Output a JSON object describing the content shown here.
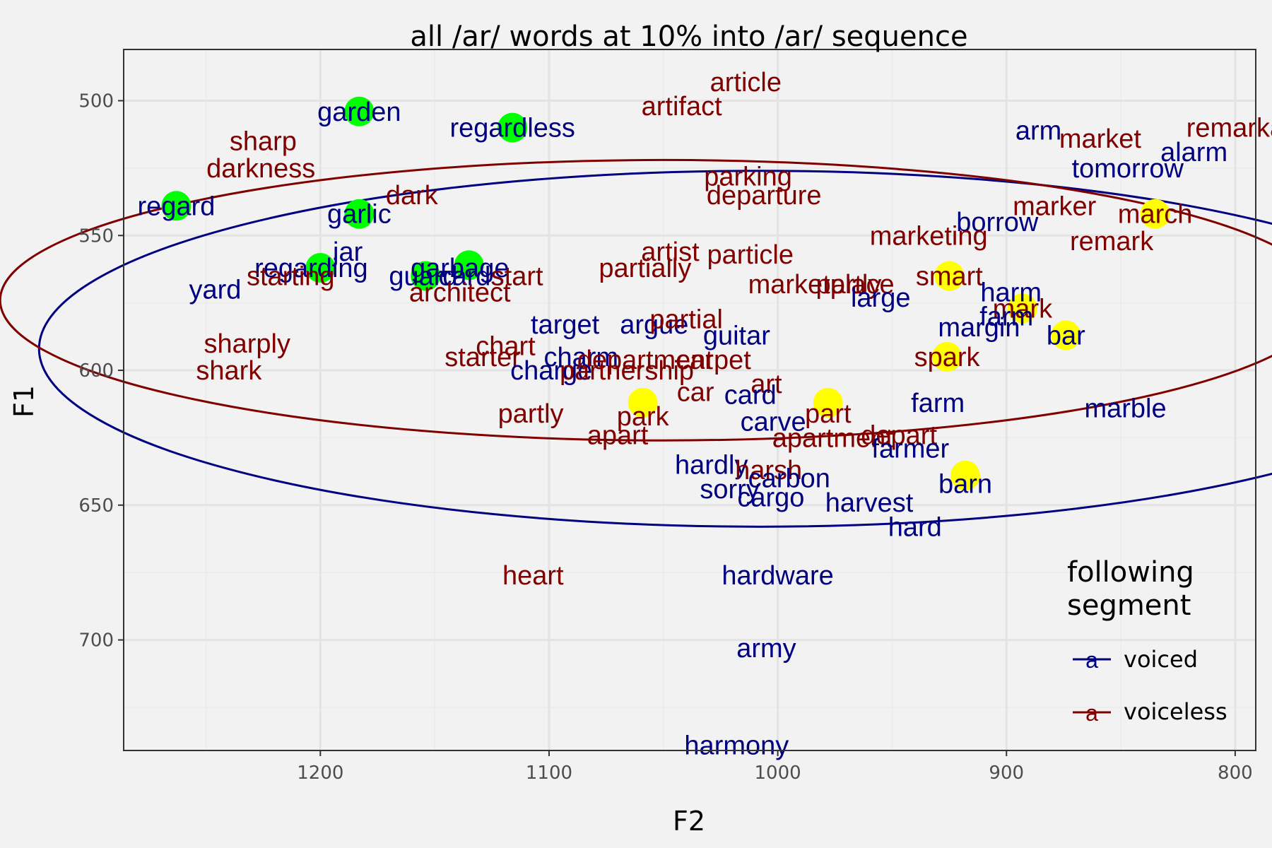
{
  "chart_data": {
    "type": "scatter",
    "title": "all /ar/ words at 10% into /ar/ sequence",
    "xlabel": "F2",
    "ylabel": "F1",
    "x_reversed": true,
    "y_reversed": true,
    "xlim": [
      1286,
      791
    ],
    "ylim": [
      481,
      741
    ],
    "x_major_ticks": [
      1200,
      1100,
      1000,
      900,
      800
    ],
    "x_minor_ticks": [
      1250,
      1150,
      1050,
      950,
      850
    ],
    "y_major_ticks": [
      500,
      550,
      600,
      650,
      700
    ],
    "y_minor_ticks": [
      525,
      575,
      625,
      675,
      725
    ],
    "grid": true,
    "legend": {
      "title": "following\nsegment",
      "title_lines": [
        "following",
        "segment"
      ],
      "position": "bottom-right",
      "key_glyph": "a",
      "entries": [
        {
          "name": "voiced",
          "color": "#000080"
        },
        {
          "name": "voiceless",
          "color": "#800000"
        }
      ]
    },
    "colors": {
      "voiced": "#000080",
      "voiceless": "#800000",
      "green_marker": "#00ff00",
      "yellow_marker": "#ffff00"
    },
    "highlight_markers": {
      "green": [
        {
          "x": 1183,
          "y": 504
        },
        {
          "x": 1116,
          "y": 510
        },
        {
          "x": 1263,
          "y": 539
        },
        {
          "x": 1183,
          "y": 542
        },
        {
          "x": 1200,
          "y": 562
        },
        {
          "x": 1154,
          "y": 565
        },
        {
          "x": 1135,
          "y": 561
        }
      ],
      "yellow": [
        {
          "x": 835,
          "y": 542
        },
        {
          "x": 925,
          "y": 565
        },
        {
          "x": 893,
          "y": 577
        },
        {
          "x": 874,
          "y": 587
        },
        {
          "x": 926,
          "y": 595
        },
        {
          "x": 978,
          "y": 612
        },
        {
          "x": 1059,
          "y": 612
        },
        {
          "x": 918,
          "y": 639
        }
      ]
    },
    "ellipses": [
      {
        "group": "voiced",
        "cx": 1008,
        "cy": 592,
        "rx": 315,
        "ry": 66
      },
      {
        "group": "voiceless",
        "cx": 1050,
        "cy": 574,
        "rx": 290,
        "ry": 52
      }
    ],
    "points": [
      {
        "word": "article",
        "x": 1014,
        "y": 493,
        "group": "voiceless"
      },
      {
        "word": "artifact",
        "x": 1042,
        "y": 502,
        "group": "voiceless"
      },
      {
        "word": "garden",
        "x": 1183,
        "y": 504,
        "group": "voiced"
      },
      {
        "word": "regardless",
        "x": 1116,
        "y": 510,
        "group": "voiced"
      },
      {
        "word": "sharp",
        "x": 1225,
        "y": 515,
        "group": "voiceless"
      },
      {
        "word": "arm",
        "x": 886,
        "y": 511,
        "group": "voiced"
      },
      {
        "word": "market",
        "x": 859,
        "y": 514,
        "group": "voiceless"
      },
      {
        "word": "remarkable",
        "x": 792,
        "y": 510,
        "group": "voiceless"
      },
      {
        "word": "alarm",
        "x": 818,
        "y": 519,
        "group": "voiced"
      },
      {
        "word": "darkness",
        "x": 1226,
        "y": 525,
        "group": "voiceless"
      },
      {
        "word": "tomorrow",
        "x": 847,
        "y": 525,
        "group": "voiced"
      },
      {
        "word": "parking",
        "x": 1013,
        "y": 528,
        "group": "voiceless"
      },
      {
        "word": "departure",
        "x": 1006,
        "y": 535,
        "group": "voiceless"
      },
      {
        "word": "dark",
        "x": 1160,
        "y": 535,
        "group": "voiceless"
      },
      {
        "word": "regard",
        "x": 1263,
        "y": 539,
        "group": "voiced"
      },
      {
        "word": "garlic",
        "x": 1183,
        "y": 542,
        "group": "voiced"
      },
      {
        "word": "marker",
        "x": 879,
        "y": 539,
        "group": "voiceless"
      },
      {
        "word": "march",
        "x": 835,
        "y": 542,
        "group": "voiceless"
      },
      {
        "word": "borrow",
        "x": 904,
        "y": 545,
        "group": "voiced"
      },
      {
        "word": "remark",
        "x": 854,
        "y": 552,
        "group": "voiceless"
      },
      {
        "word": "marketing",
        "x": 934,
        "y": 550,
        "group": "voiceless"
      },
      {
        "word": "artist",
        "x": 1047,
        "y": 556,
        "group": "voiceless"
      },
      {
        "word": "particle",
        "x": 1012,
        "y": 557,
        "group": "voiceless"
      },
      {
        "word": "jar",
        "x": 1188,
        "y": 556,
        "group": "voiced"
      },
      {
        "word": "regarding",
        "x": 1204,
        "y": 562,
        "group": "voiced"
      },
      {
        "word": "starting",
        "x": 1213,
        "y": 565,
        "group": "voiceless"
      },
      {
        "word": "guard",
        "x": 1155,
        "y": 565,
        "group": "voiced"
      },
      {
        "word": "garbage",
        "x": 1139,
        "y": 562,
        "group": "voiced"
      },
      {
        "word": "cards",
        "x": 1134,
        "y": 565,
        "group": "voiced"
      },
      {
        "word": "start",
        "x": 1114,
        "y": 565,
        "group": "voiceless"
      },
      {
        "word": "architect",
        "x": 1139,
        "y": 571,
        "group": "voiceless"
      },
      {
        "word": "partially",
        "x": 1058,
        "y": 562,
        "group": "voiceless"
      },
      {
        "word": "smart",
        "x": 925,
        "y": 565,
        "group": "voiceless"
      },
      {
        "word": "marketplace",
        "x": 981,
        "y": 568,
        "group": "voiceless"
      },
      {
        "word": "partly",
        "x": 969,
        "y": 568,
        "group": "voiceless"
      },
      {
        "word": "large",
        "x": 955,
        "y": 573,
        "group": "voiced"
      },
      {
        "word": "yard",
        "x": 1246,
        "y": 570,
        "group": "voiced"
      },
      {
        "word": "harm",
        "x": 898,
        "y": 571,
        "group": "voiced"
      },
      {
        "word": "mark",
        "x": 893,
        "y": 577,
        "group": "voiceless"
      },
      {
        "word": "farm",
        "x": 900,
        "y": 580,
        "group": "voiced"
      },
      {
        "word": "target",
        "x": 1093,
        "y": 583,
        "group": "voiced"
      },
      {
        "word": "argue",
        "x": 1054,
        "y": 583,
        "group": "voiced"
      },
      {
        "word": "partial",
        "x": 1040,
        "y": 581,
        "group": "voiceless"
      },
      {
        "word": "guitar",
        "x": 1018,
        "y": 587,
        "group": "voiced"
      },
      {
        "word": "margin",
        "x": 912,
        "y": 584,
        "group": "voiced"
      },
      {
        "word": "bar",
        "x": 874,
        "y": 587,
        "group": "voiced"
      },
      {
        "word": "sharply",
        "x": 1232,
        "y": 590,
        "group": "voiceless"
      },
      {
        "word": "chart",
        "x": 1119,
        "y": 591,
        "group": "voiceless"
      },
      {
        "word": "starter",
        "x": 1129,
        "y": 595,
        "group": "voiceless"
      },
      {
        "word": "charm",
        "x": 1086,
        "y": 595,
        "group": "voiced"
      },
      {
        "word": "department",
        "x": 1058,
        "y": 596,
        "group": "voiceless"
      },
      {
        "word": "carpet",
        "x": 1028,
        "y": 596,
        "group": "voiceless"
      },
      {
        "word": "spark",
        "x": 926,
        "y": 595,
        "group": "voiceless"
      },
      {
        "word": "charge",
        "x": 1099,
        "y": 600,
        "group": "voiced"
      },
      {
        "word": "partnership",
        "x": 1066,
        "y": 600,
        "group": "voiceless"
      },
      {
        "word": "shark",
        "x": 1240,
        "y": 600,
        "group": "voiceless"
      },
      {
        "word": "art",
        "x": 1005,
        "y": 605,
        "group": "voiceless"
      },
      {
        "word": "car",
        "x": 1036,
        "y": 608,
        "group": "voiceless"
      },
      {
        "word": "card",
        "x": 1012,
        "y": 609,
        "group": "voiced"
      },
      {
        "word": "farm",
        "x": 930,
        "y": 612,
        "group": "voiced"
      },
      {
        "word": "marble",
        "x": 848,
        "y": 614,
        "group": "voiced"
      },
      {
        "word": "partly",
        "x": 1108,
        "y": 616,
        "group": "voiceless"
      },
      {
        "word": "park",
        "x": 1059,
        "y": 617,
        "group": "voiceless"
      },
      {
        "word": "part",
        "x": 978,
        "y": 616,
        "group": "voiceless"
      },
      {
        "word": "carve",
        "x": 1002,
        "y": 619,
        "group": "voiced"
      },
      {
        "word": "apart",
        "x": 1070,
        "y": 624,
        "group": "voiceless"
      },
      {
        "word": "apartment",
        "x": 976,
        "y": 625,
        "group": "voiceless"
      },
      {
        "word": "depart",
        "x": 947,
        "y": 624,
        "group": "voiceless"
      },
      {
        "word": "farmer",
        "x": 942,
        "y": 629,
        "group": "voiced"
      },
      {
        "word": "hardly",
        "x": 1029,
        "y": 635,
        "group": "voiced"
      },
      {
        "word": "harsh",
        "x": 1004,
        "y": 637,
        "group": "voiceless"
      },
      {
        "word": "carbon",
        "x": 995,
        "y": 640,
        "group": "voiced"
      },
      {
        "word": "barn",
        "x": 918,
        "y": 642,
        "group": "voiced"
      },
      {
        "word": "sorry",
        "x": 1021,
        "y": 644,
        "group": "voiced"
      },
      {
        "word": "cargo",
        "x": 1003,
        "y": 647,
        "group": "voiced"
      },
      {
        "word": "harvest",
        "x": 960,
        "y": 649,
        "group": "voiced"
      },
      {
        "word": "hard",
        "x": 940,
        "y": 658,
        "group": "voiced"
      },
      {
        "word": "heart",
        "x": 1107,
        "y": 676,
        "group": "voiceless"
      },
      {
        "word": "hardware",
        "x": 1000,
        "y": 676,
        "group": "voiced"
      },
      {
        "word": "army",
        "x": 1005,
        "y": 703,
        "group": "voiced"
      },
      {
        "word": "harmony",
        "x": 1018,
        "y": 739,
        "group": "voiced"
      }
    ]
  }
}
